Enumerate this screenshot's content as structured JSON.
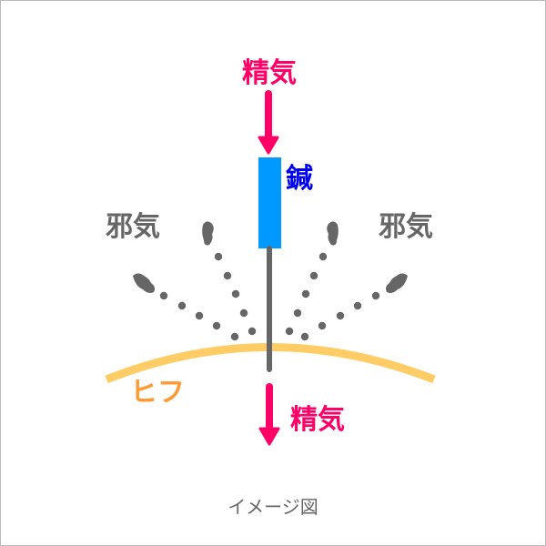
{
  "labels": {
    "top_energy": "精気",
    "needle": "鍼",
    "evil_left": "邪気",
    "evil_right": "邪気",
    "skin": "ヒフ",
    "bottom_energy": "精気",
    "caption": "イメージ図"
  },
  "colors": {
    "energy": "#FF0066",
    "needle_handle": "#0099FF",
    "needle_label": "#0000EE",
    "needle_shaft": "#666666",
    "evil": "#666666",
    "skin": "#FFCC66",
    "skin_label": "#FF9933",
    "caption": "#666666"
  }
}
